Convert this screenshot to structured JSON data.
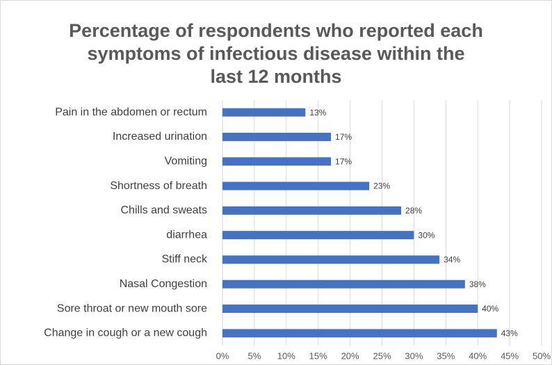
{
  "chart_data": {
    "type": "bar",
    "orientation": "horizontal",
    "title": "Percentage of respondents who reported each\nsymptoms of infectious disease within the\nlast 12 months",
    "categories": [
      "Pain in the abdomen or rectum",
      "Increased urination",
      "Vomiting",
      "Shortness of breath",
      "Chills and sweats",
      "diarrhea",
      "Stiff neck",
      "Nasal Congestion",
      "Sore throat or new mouth sore",
      "Change in cough or a new cough"
    ],
    "values": [
      13,
      17,
      17,
      23,
      28,
      30,
      34,
      38,
      40,
      43
    ],
    "value_labels": [
      "13%",
      "17%",
      "17%",
      "23%",
      "28%",
      "30%",
      "34%",
      "38%",
      "40%",
      "43%"
    ],
    "color": "#4472c4",
    "xlim": [
      0,
      50
    ],
    "xticks": [
      {
        "value": 0,
        "label": "0%"
      },
      {
        "value": 5,
        "label": "5%"
      },
      {
        "value": 10,
        "label": "10%"
      },
      {
        "value": 15,
        "label": "15%"
      },
      {
        "value": 20,
        "label": "20%"
      },
      {
        "value": 25,
        "label": "25%"
      },
      {
        "value": 30,
        "label": "30%"
      },
      {
        "value": 35,
        "label": "35%"
      },
      {
        "value": 40,
        "label": "40%"
      },
      {
        "value": 45,
        "label": "45%"
      },
      {
        "value": 50,
        "label": "50%"
      }
    ],
    "grid": true
  }
}
